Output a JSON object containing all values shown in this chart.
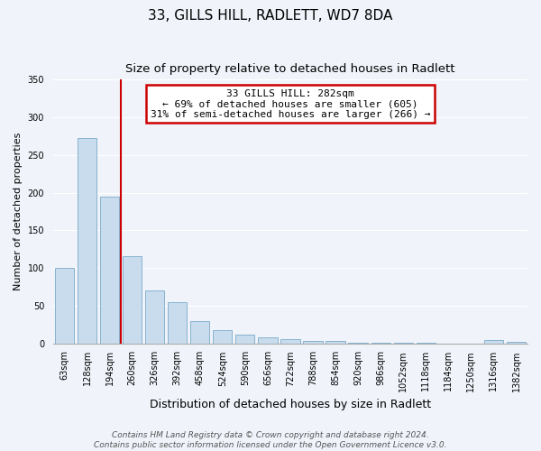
{
  "title": "33, GILLS HILL, RADLETT, WD7 8DA",
  "subtitle": "Size of property relative to detached houses in Radlett",
  "xlabel": "Distribution of detached houses by size in Radlett",
  "ylabel": "Number of detached properties",
  "categories": [
    "63sqm",
    "128sqm",
    "194sqm",
    "260sqm",
    "326sqm",
    "392sqm",
    "458sqm",
    "524sqm",
    "590sqm",
    "656sqm",
    "722sqm",
    "788sqm",
    "854sqm",
    "920sqm",
    "986sqm",
    "1052sqm",
    "1118sqm",
    "1184sqm",
    "1250sqm",
    "1316sqm",
    "1382sqm"
  ],
  "values": [
    100,
    272,
    195,
    116,
    70,
    55,
    29,
    18,
    11,
    8,
    5,
    3,
    3,
    1,
    1,
    1,
    1,
    0,
    0,
    4,
    2
  ],
  "bar_color": "#c8dced",
  "bar_edge_color": "#7aaac8",
  "redline_x": 2.5,
  "annotation_title": "33 GILLS HILL: 282sqm",
  "annotation_line1": "← 69% of detached houses are smaller (605)",
  "annotation_line2": "31% of semi-detached houses are larger (266) →",
  "annotation_box_color": "#ffffff",
  "annotation_box_edge": "#cc0000",
  "redline_color": "#cc0000",
  "ylim": [
    0,
    350
  ],
  "yticks": [
    0,
    50,
    100,
    150,
    200,
    250,
    300,
    350
  ],
  "footer_line1": "Contains HM Land Registry data © Crown copyright and database right 2024.",
  "footer_line2": "Contains public sector information licensed under the Open Government Licence v3.0.",
  "bg_color": "#f0f4fa",
  "grid_color": "#ffffff",
  "title_fontsize": 11,
  "subtitle_fontsize": 9.5,
  "xlabel_fontsize": 9,
  "ylabel_fontsize": 8,
  "tick_fontsize": 7,
  "footer_fontsize": 6.5
}
